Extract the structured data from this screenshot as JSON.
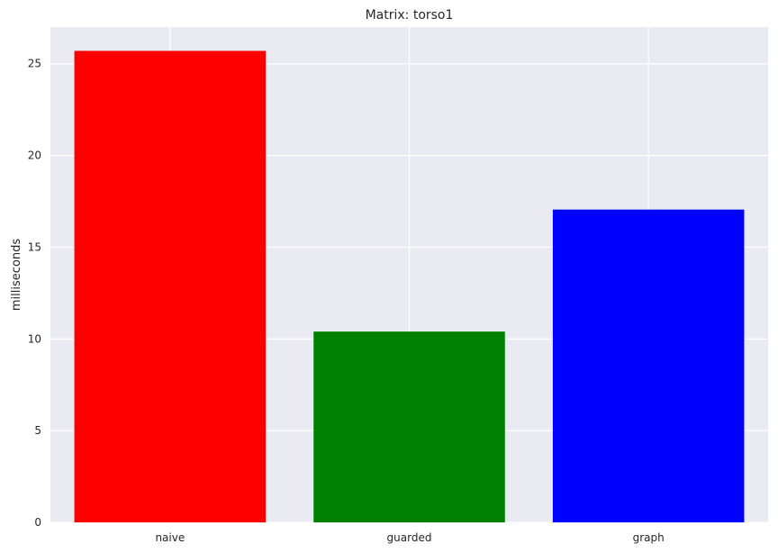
{
  "chart_data": {
    "type": "bar",
    "title": "Matrix: torso1",
    "xlabel": "",
    "ylabel": "milliseconds",
    "categories": [
      "naive",
      "guarded",
      "graph"
    ],
    "values": [
      25.7,
      10.4,
      17.05
    ],
    "colors": [
      "#ff0000",
      "#008000",
      "#0000ff"
    ],
    "ylim": [
      0,
      27.0
    ],
    "yticks": [
      0,
      5,
      10,
      15,
      20,
      25
    ],
    "grid": true,
    "background": "#eaeaf2",
    "grid_color": "#ffffff"
  }
}
